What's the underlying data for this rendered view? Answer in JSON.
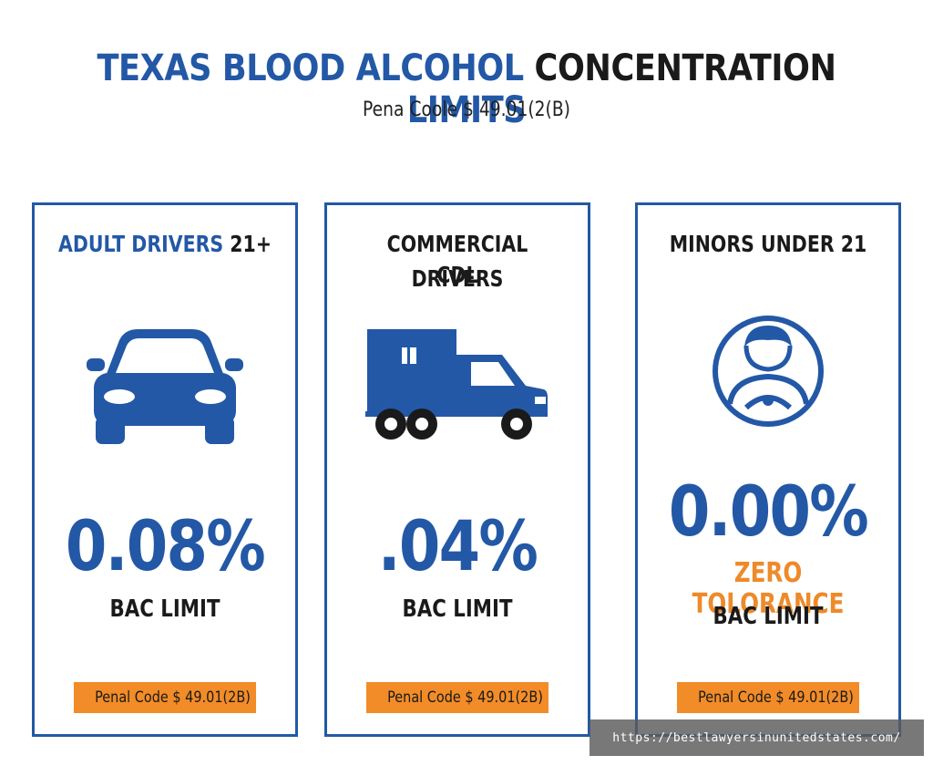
{
  "header": {
    "title_part1": "TEXAS BLOOD ALCOHOL ",
    "title_part2": "CONCENTRATION ",
    "title_part3": "LIMITS",
    "subtitle": "Pena Coole $ 49.01(2(B)"
  },
  "cards": [
    {
      "title_blue": "ADULT DRIVERS ",
      "title_dark": "21+",
      "icon": "car-icon",
      "value": "0.08%",
      "label": "BAC LIMIT",
      "badge_icon": "!",
      "badge": "Penal Code $ 49.01(2B)"
    },
    {
      "title_line1": "COMMERCIAL DRIVERS",
      "title_line2": "CDL",
      "icon": "truck-icon",
      "value": ".04%",
      "label": "BAC LIMIT",
      "badge_icon": "!",
      "badge": "Penal Code $ 49.01(2B)"
    },
    {
      "title": "MINORS UNDER 21",
      "icon": "young-driver-icon",
      "value": "0.00%",
      "note": "ZERO TOLORANCE",
      "label": "BAC LIMIT",
      "badge_icon": "!",
      "badge": "Penal Code $ 49.01(2B)"
    }
  ],
  "watermark": "https://bestlawyersinunitedstates.com/",
  "colors": {
    "primary_blue": "#2358a6",
    "accent_orange": "#f28c28",
    "text_dark": "#1a1a1a"
  }
}
